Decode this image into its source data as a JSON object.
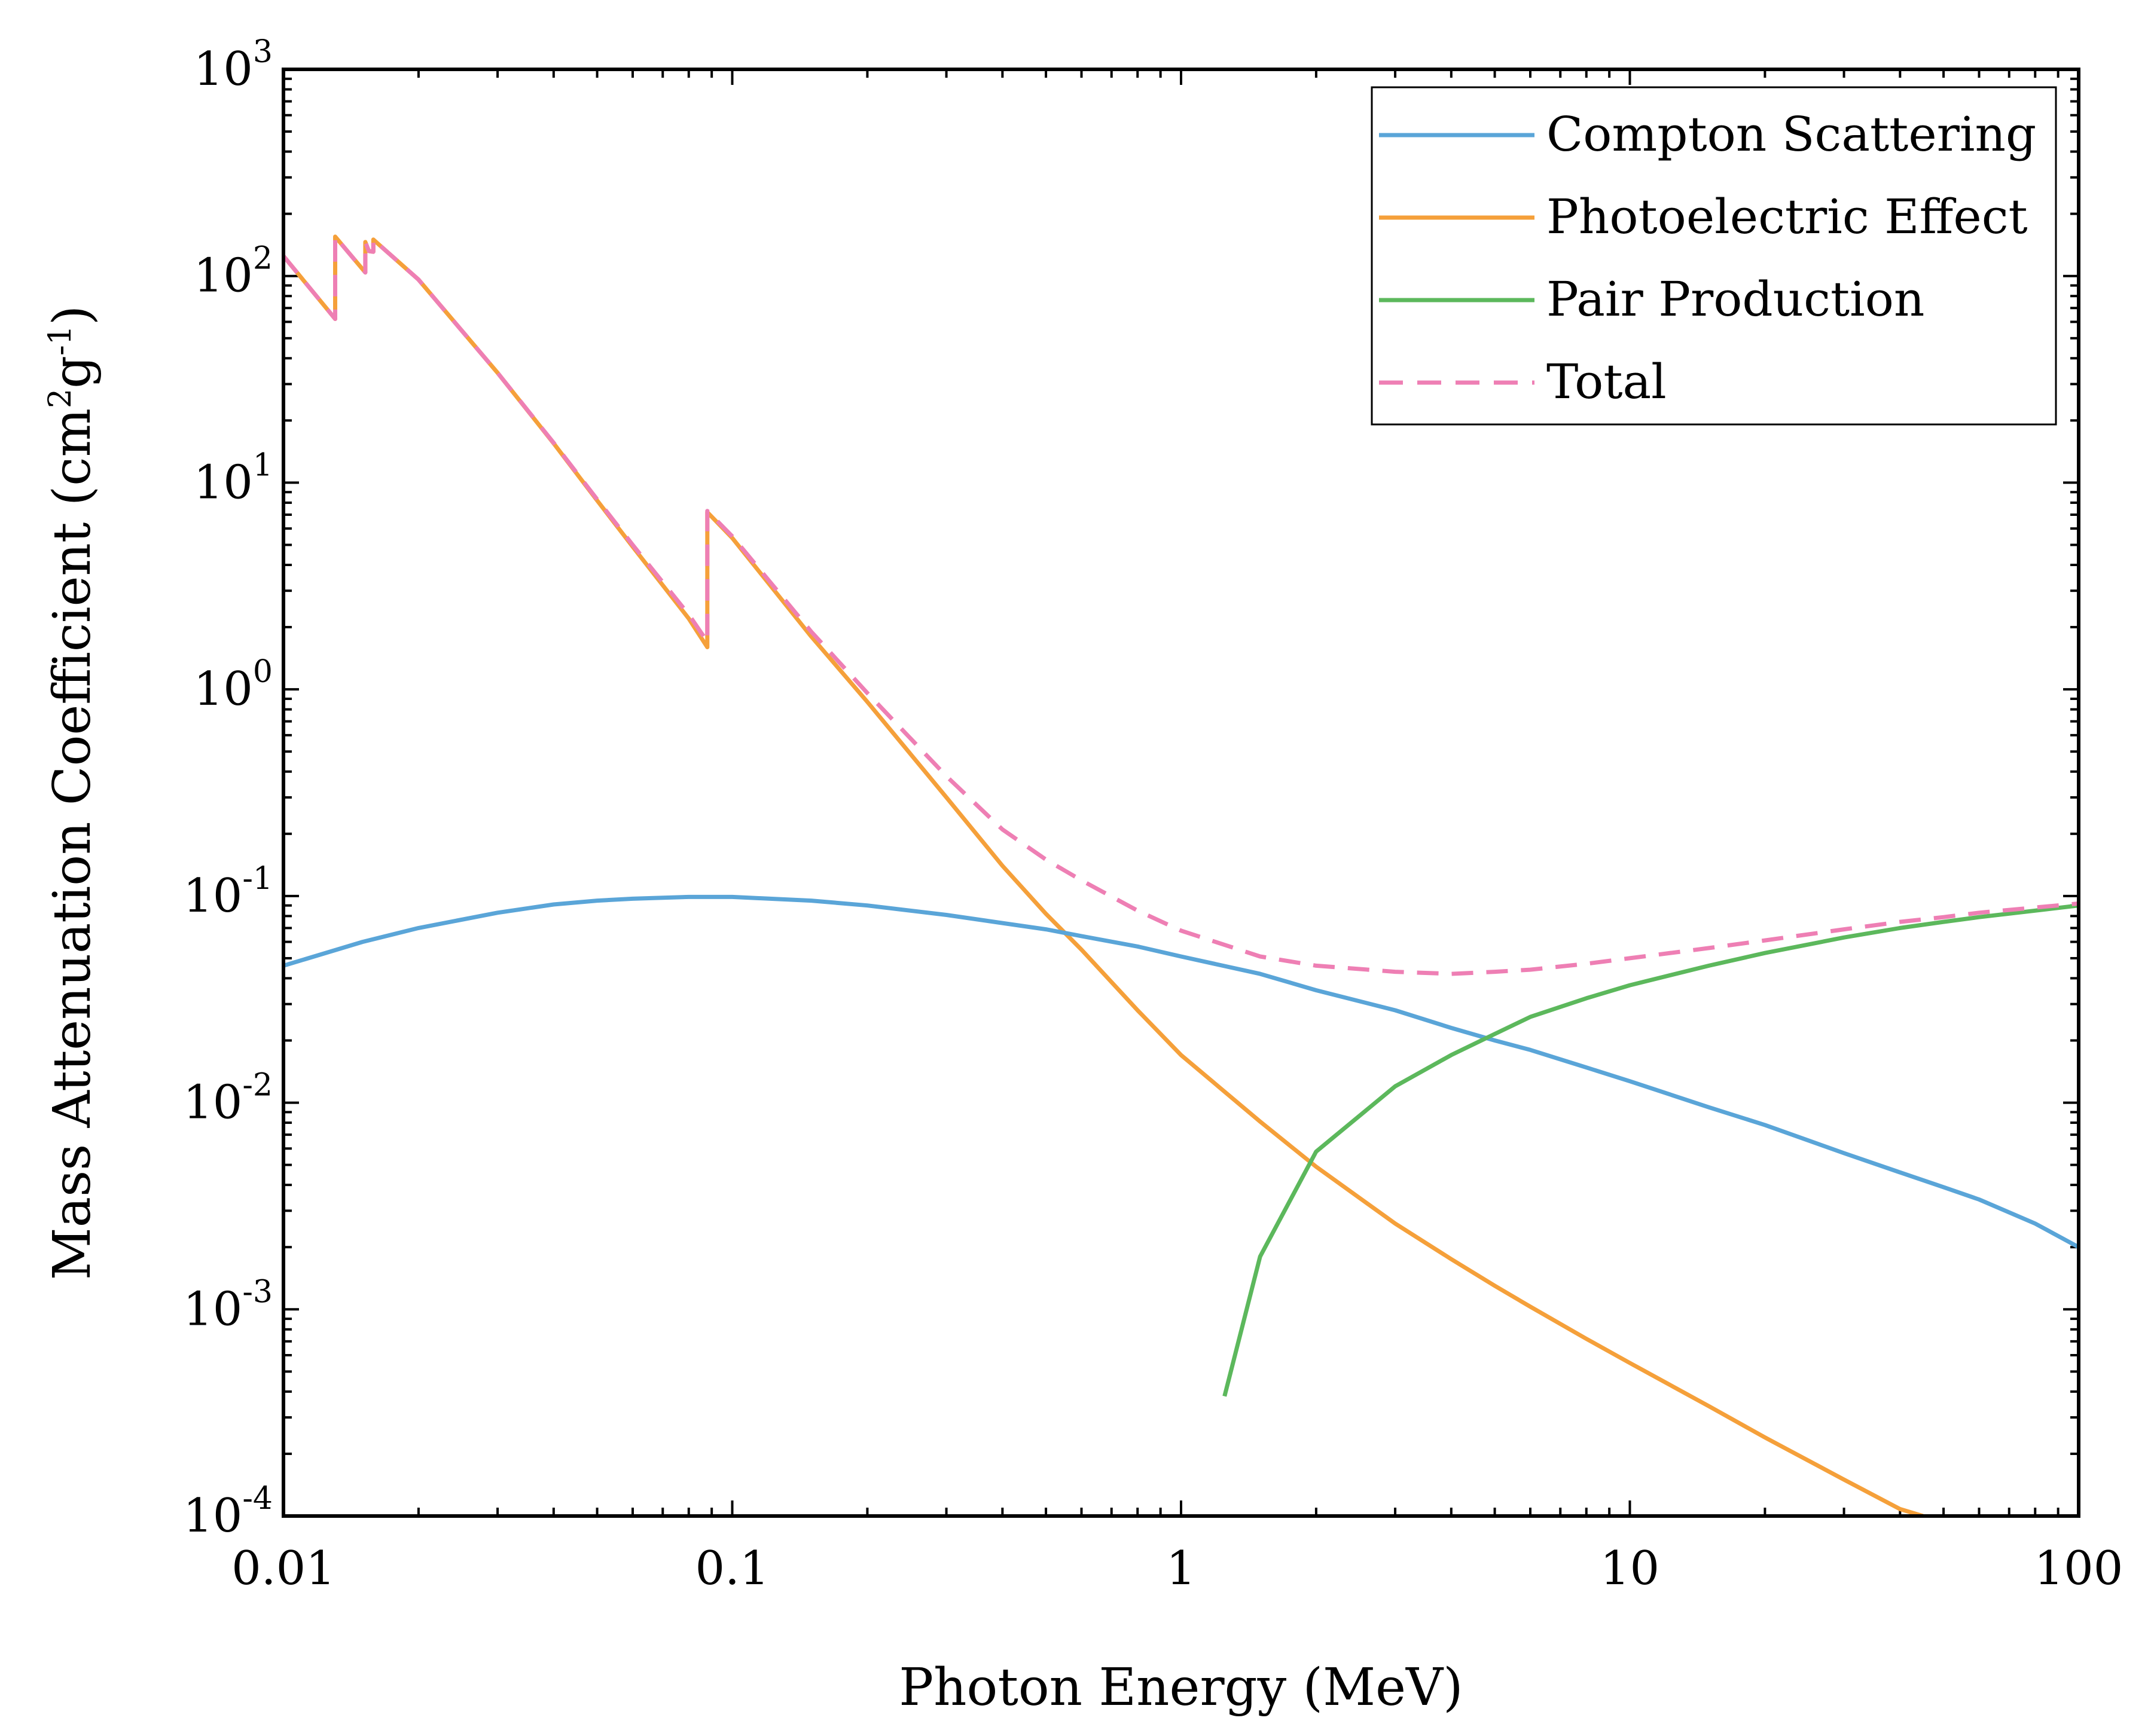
{
  "chart_data": {
    "type": "line",
    "xlabel": "Photon Energy (MeV)",
    "ylabel": {
      "prefix": "Mass Attenuation Coefficient (cm",
      "exp1": "2",
      "mid": "g",
      "exp2": "-1",
      "suffix": ")"
    },
    "xscale": "log",
    "yscale": "log",
    "xlim": [
      0.01,
      100
    ],
    "ylim": [
      0.0001,
      1000
    ],
    "grid": false,
    "legend_position": "top-right",
    "x_ticks": [
      {
        "value": 0.01,
        "label": "0.01"
      },
      {
        "value": 0.1,
        "label": "0.1"
      },
      {
        "value": 1,
        "label": "1"
      },
      {
        "value": 10,
        "label": "10"
      },
      {
        "value": 100,
        "label": "100"
      }
    ],
    "y_ticks": [
      {
        "value": 1000,
        "base": "10",
        "exp": "3"
      },
      {
        "value": 100,
        "base": "10",
        "exp": "2"
      },
      {
        "value": 10,
        "base": "10",
        "exp": "1"
      },
      {
        "value": 1,
        "base": "10",
        "exp": "0"
      },
      {
        "value": 0.1,
        "base": "10",
        "exp": "-1"
      },
      {
        "value": 0.01,
        "base": "10",
        "exp": "-2"
      },
      {
        "value": 0.001,
        "base": "10",
        "exp": "-3"
      },
      {
        "value": 0.0001,
        "base": "10",
        "exp": "-4"
      }
    ],
    "series": [
      {
        "name": "Compton Scattering",
        "color": "#5aa5d8",
        "dash": false,
        "points": [
          [
            0.01,
            0.046
          ],
          [
            0.015,
            0.06
          ],
          [
            0.02,
            0.07
          ],
          [
            0.03,
            0.083
          ],
          [
            0.04,
            0.091
          ],
          [
            0.05,
            0.095
          ],
          [
            0.06,
            0.097
          ],
          [
            0.08,
            0.099
          ],
          [
            0.1,
            0.099
          ],
          [
            0.15,
            0.095
          ],
          [
            0.2,
            0.09
          ],
          [
            0.3,
            0.081
          ],
          [
            0.4,
            0.074
          ],
          [
            0.5,
            0.069
          ],
          [
            0.6,
            0.064
          ],
          [
            0.8,
            0.057
          ],
          [
            1,
            0.051
          ],
          [
            1.5,
            0.042
          ],
          [
            2,
            0.035
          ],
          [
            3,
            0.028
          ],
          [
            4,
            0.023
          ],
          [
            5,
            0.02
          ],
          [
            6,
            0.018
          ],
          [
            8,
            0.0148
          ],
          [
            10,
            0.0127
          ],
          [
            15,
            0.0095
          ],
          [
            20,
            0.0078
          ],
          [
            30,
            0.0057
          ],
          [
            40,
            0.0046
          ],
          [
            50,
            0.0039
          ],
          [
            60,
            0.0034
          ],
          [
            80,
            0.0026
          ],
          [
            100,
            0.002
          ]
        ]
      },
      {
        "name": "Photoelectric Effect",
        "color": "#f5a03a",
        "dash": false,
        "points": [
          [
            0.01,
            125
          ],
          [
            0.01304,
            62
          ],
          [
            0.01304,
            155
          ],
          [
            0.01522,
            104
          ],
          [
            0.01522,
            146
          ],
          [
            0.0155,
            132
          ],
          [
            0.01586,
            131
          ],
          [
            0.01586,
            150
          ],
          [
            0.02,
            96
          ],
          [
            0.03,
            34
          ],
          [
            0.04,
            15.5
          ],
          [
            0.05,
            8.2
          ],
          [
            0.06,
            4.9
          ],
          [
            0.08,
            2.2
          ],
          [
            0.088,
            1.6
          ],
          [
            0.088,
            7.2
          ],
          [
            0.1,
            5.4
          ],
          [
            0.15,
            1.8
          ],
          [
            0.2,
            0.87
          ],
          [
            0.3,
            0.3
          ],
          [
            0.4,
            0.14
          ],
          [
            0.5,
            0.082
          ],
          [
            0.6,
            0.055
          ],
          [
            0.8,
            0.028
          ],
          [
            1,
            0.017
          ],
          [
            1.5,
            0.0081
          ],
          [
            2,
            0.0049
          ],
          [
            3,
            0.0026
          ],
          [
            4,
            0.00175
          ],
          [
            5,
            0.0013
          ],
          [
            6,
            0.00103
          ],
          [
            8,
            0.00072
          ],
          [
            10,
            0.00055
          ],
          [
            15,
            0.00034
          ],
          [
            20,
            0.00024
          ],
          [
            30,
            0.00015
          ],
          [
            40,
            0.000108
          ],
          [
            45,
            0.0001
          ]
        ]
      },
      {
        "name": "Pair Production",
        "color": "#5cb85c",
        "dash": false,
        "points": [
          [
            1.25,
            0.00038
          ],
          [
            1.5,
            0.0018
          ],
          [
            2,
            0.0058
          ],
          [
            3,
            0.012
          ],
          [
            4,
            0.017
          ],
          [
            5,
            0.0215
          ],
          [
            6,
            0.026
          ],
          [
            8,
            0.032
          ],
          [
            10,
            0.037
          ],
          [
            15,
            0.046
          ],
          [
            20,
            0.053
          ],
          [
            30,
            0.063
          ],
          [
            40,
            0.07
          ],
          [
            50,
            0.075
          ],
          [
            60,
            0.079
          ],
          [
            80,
            0.085
          ],
          [
            100,
            0.09
          ]
        ]
      },
      {
        "name": "Total",
        "color": "#ee7fb4",
        "dash": true,
        "points": [
          [
            0.01,
            125
          ],
          [
            0.01304,
            62
          ],
          [
            0.01304,
            155
          ],
          [
            0.01522,
            104
          ],
          [
            0.01522,
            146
          ],
          [
            0.0155,
            132
          ],
          [
            0.01586,
            131
          ],
          [
            0.01586,
            150
          ],
          [
            0.02,
            96
          ],
          [
            0.03,
            34
          ],
          [
            0.04,
            15.6
          ],
          [
            0.05,
            8.3
          ],
          [
            0.06,
            5.0
          ],
          [
            0.08,
            2.3
          ],
          [
            0.088,
            1.7
          ],
          [
            0.088,
            7.3
          ],
          [
            0.1,
            5.5
          ],
          [
            0.15,
            1.9
          ],
          [
            0.2,
            0.96
          ],
          [
            0.3,
            0.38
          ],
          [
            0.4,
            0.21
          ],
          [
            0.5,
            0.15
          ],
          [
            0.6,
            0.119
          ],
          [
            0.8,
            0.085
          ],
          [
            1,
            0.068
          ],
          [
            1.5,
            0.051
          ],
          [
            2,
            0.046
          ],
          [
            3,
            0.043
          ],
          [
            4,
            0.042
          ],
          [
            5,
            0.043
          ],
          [
            6,
            0.044
          ],
          [
            8,
            0.047
          ],
          [
            10,
            0.05
          ],
          [
            15,
            0.056
          ],
          [
            20,
            0.061
          ],
          [
            30,
            0.069
          ],
          [
            40,
            0.075
          ],
          [
            50,
            0.079
          ],
          [
            60,
            0.083
          ],
          [
            80,
            0.088
          ],
          [
            100,
            0.092
          ]
        ]
      }
    ]
  }
}
